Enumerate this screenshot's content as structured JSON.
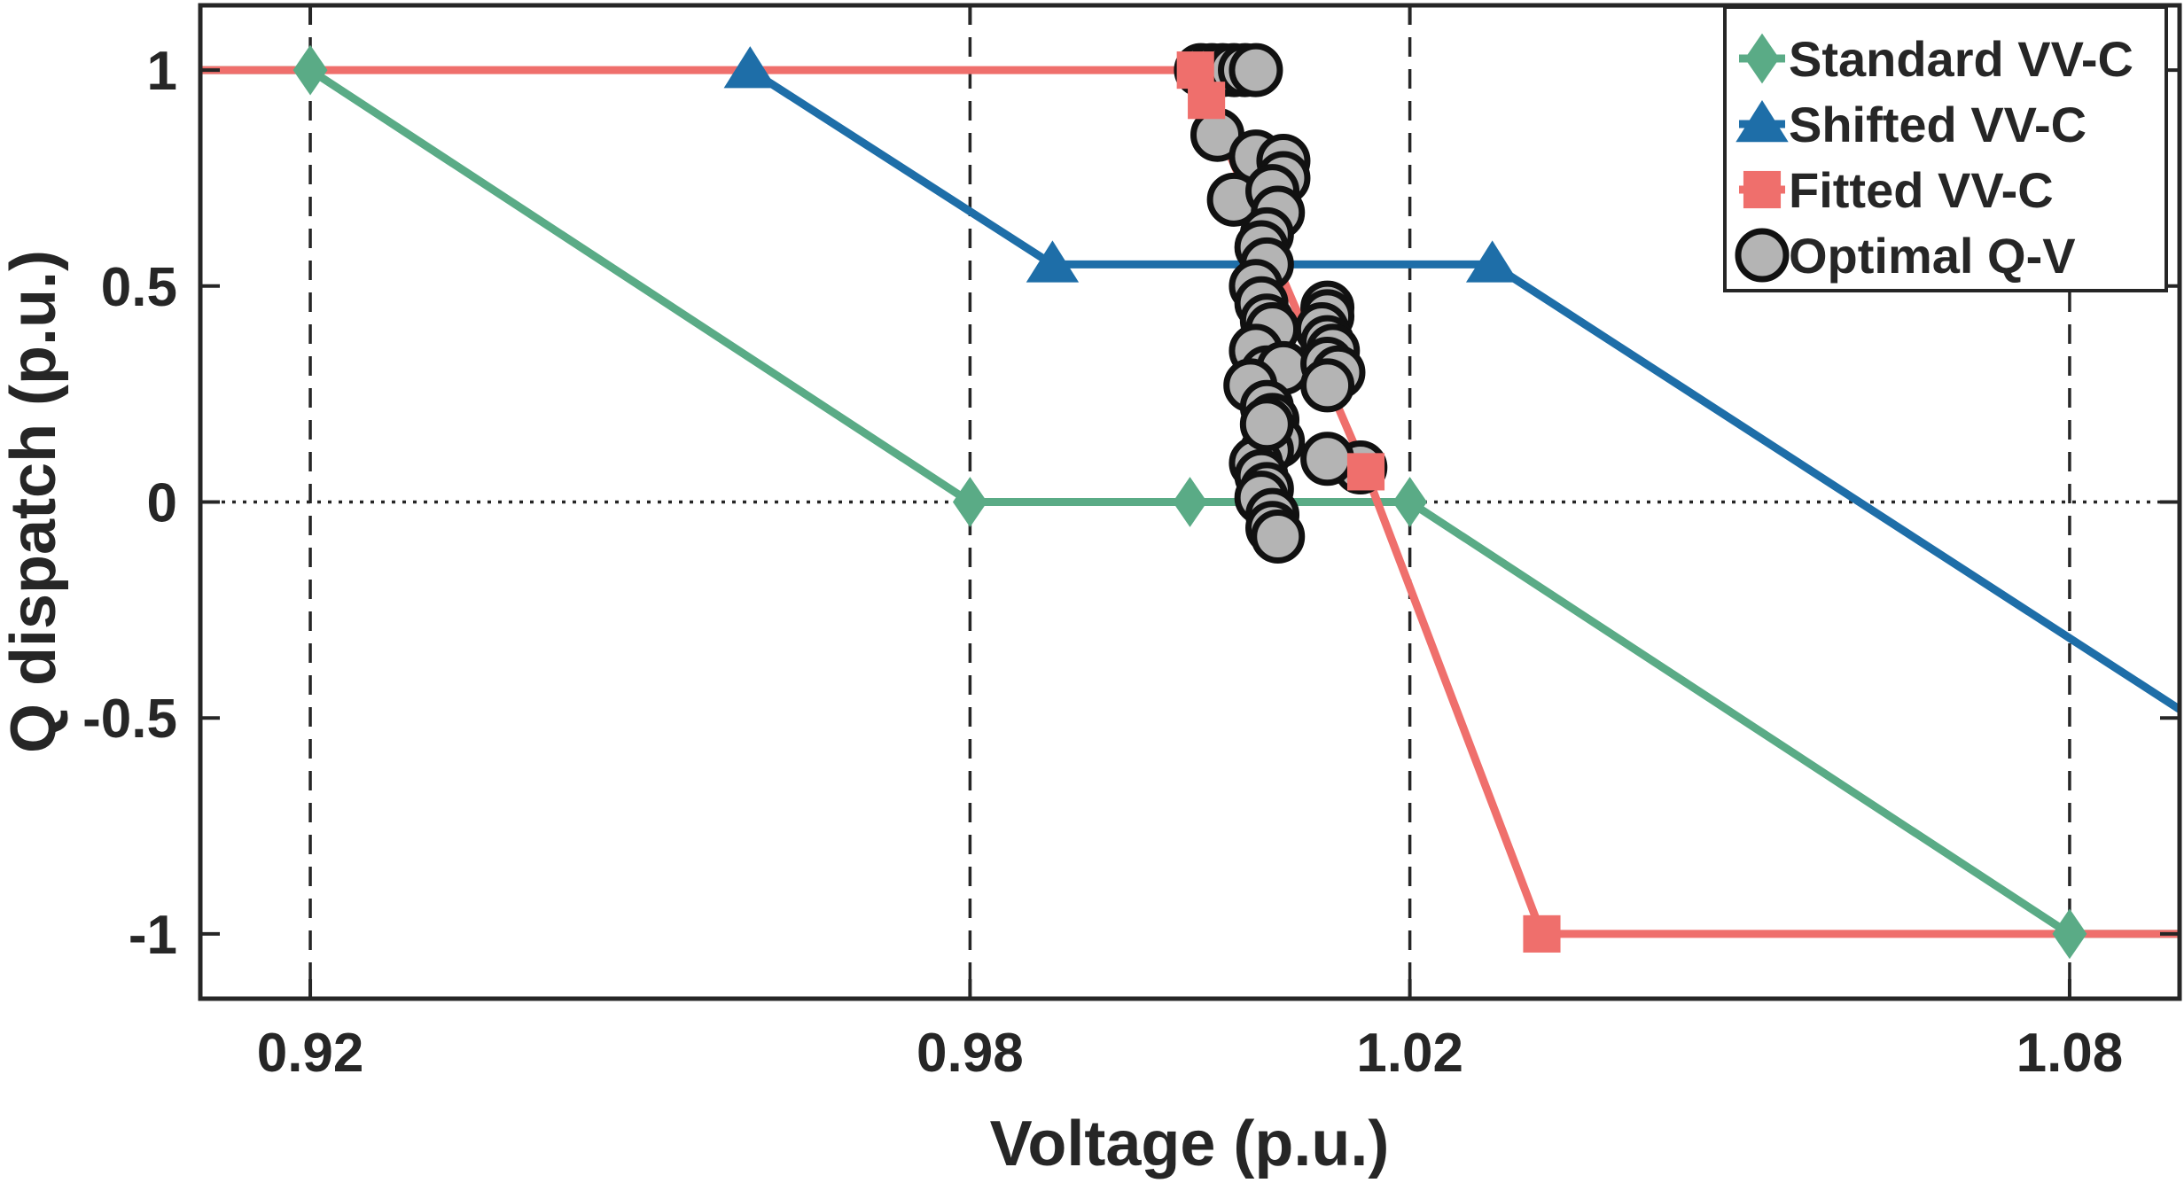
{
  "chart_data": {
    "type": "line",
    "title": "",
    "xlabel": "Voltage (p.u.)",
    "ylabel": "Q dispatch (p.u.)",
    "xlim": [
      0.91,
      1.09
    ],
    "ylim": [
      -1.15,
      1.15
    ],
    "xticks": [
      0.92,
      0.98,
      1.02,
      1.08
    ],
    "xtick_labels": [
      "0.92",
      "0.98",
      "1.02",
      "1.08"
    ],
    "yticks": [
      1,
      0.5,
      0,
      -0.5,
      -1
    ],
    "ytick_labels": [
      "1",
      "0.5",
      "0",
      "-0.5",
      "-1"
    ],
    "vertical_dashed_lines": [
      0.92,
      0.98,
      1.02,
      1.08
    ],
    "zero_reference_line": 0,
    "grid": false,
    "legend_position": "top-right",
    "series": [
      {
        "name": "Standard VV-C",
        "color": "#5aab86",
        "marker": "diamond",
        "x": [
          0.92,
          0.98,
          1.0,
          1.02,
          1.08
        ],
        "y": [
          1,
          0,
          0,
          0,
          -1
        ],
        "line_x": [
          0.91,
          0.92,
          0.98,
          1.0,
          1.02,
          1.08,
          1.09
        ],
        "line_y": [
          1,
          1,
          0,
          0,
          0,
          -1,
          -1
        ]
      },
      {
        "name": "Shifted VV-C",
        "color": "#1e6ea8",
        "marker": "triangle",
        "x": [
          0.96,
          0.9875,
          1.0275
        ],
        "y": [
          1,
          0.55,
          0.55
        ],
        "line_x": [
          0.96,
          0.9875,
          1.0275,
          1.09
        ],
        "line_y": [
          1,
          0.55,
          0.55,
          -0.48
        ]
      },
      {
        "name": "Fitted VV-C",
        "color": "#ef6f6c",
        "marker": "square",
        "x": [
          1.0005,
          1.0015,
          1.016,
          1.032
        ],
        "y": [
          1,
          0.93,
          0.07,
          -1
        ],
        "line_x": [
          0.91,
          1.0005,
          1.0015,
          1.016,
          1.032,
          1.09
        ],
        "line_y": [
          1,
          1,
          0.93,
          0.07,
          -1,
          -1
        ]
      },
      {
        "name": "Optimal Q-V",
        "color": "#b4b4b4",
        "marker": "circle",
        "x": [
          1.001,
          1.002,
          1.003,
          1.004,
          1.005,
          1.006,
          1.0025,
          1.004,
          1.006,
          1.0085,
          1.0085,
          1.0075,
          1.008,
          1.007,
          1.0065,
          1.007,
          1.006,
          1.0065,
          1.007,
          1.0075,
          1.006,
          1.007,
          1.0085,
          1.0055,
          1.007,
          1.0125,
          1.0125,
          1.012,
          1.0125,
          1.013,
          1.0125,
          1.0135,
          1.0125,
          1.0155,
          1.0125,
          1.0075,
          1.0075,
          1.008,
          1.007,
          1.006,
          1.0065,
          1.007,
          1.0065,
          1.0075,
          1.0075,
          1.008,
          1.007
        ],
        "y": [
          1,
          1,
          1,
          1,
          1,
          1,
          0.85,
          0.7,
          0.8,
          0.79,
          0.75,
          0.72,
          0.67,
          0.62,
          0.59,
          0.55,
          0.5,
          0.46,
          0.42,
          0.4,
          0.35,
          0.3,
          0.31,
          0.27,
          0.22,
          0.45,
          0.43,
          0.4,
          0.37,
          0.35,
          0.32,
          0.3,
          0.27,
          0.08,
          0.1,
          0.19,
          0.16,
          0.14,
          0.12,
          0.09,
          0.06,
          0.03,
          0.01,
          -0.03,
          -0.06,
          -0.08,
          0.18
        ]
      }
    ]
  }
}
